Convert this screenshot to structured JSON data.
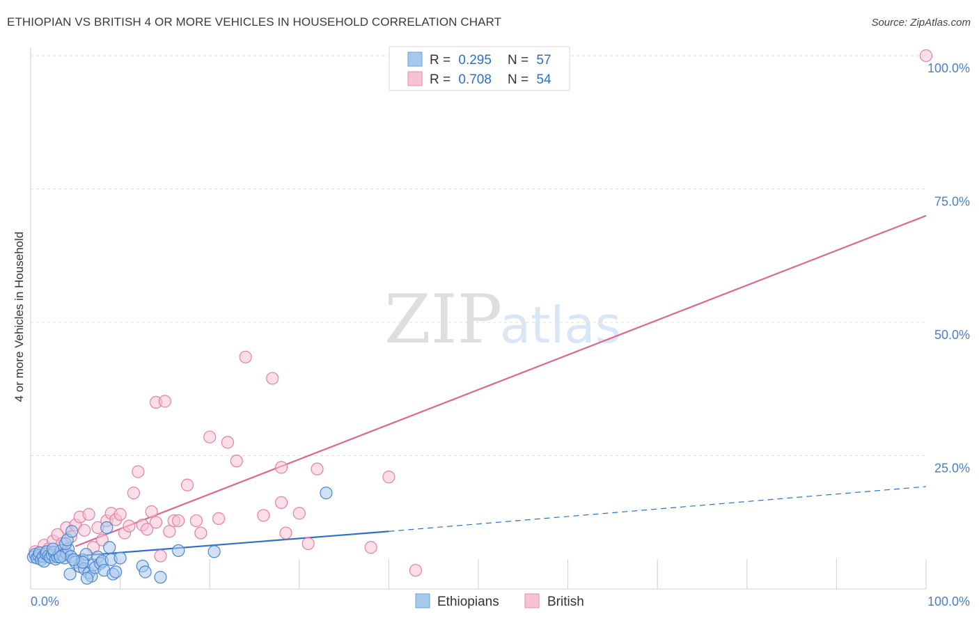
{
  "chart_data": {
    "type": "scatter",
    "title": "ETHIOPIAN VS BRITISH 4 OR MORE VEHICLES IN HOUSEHOLD CORRELATION CHART",
    "source": "Source: ZipAtlas.com",
    "watermark": {
      "zip": "ZIP",
      "atlas": "atlas"
    },
    "xlabel": "",
    "ylabel": "4 or more Vehicles in Household",
    "xlim": [
      0,
      100
    ],
    "ylim": [
      0,
      100
    ],
    "x_tick_labels": {
      "left": "0.0%",
      "right": "100.0%"
    },
    "y_ticks": [
      {
        "value": 100,
        "label": "100.0%"
      },
      {
        "value": 75,
        "label": "75.0%"
      },
      {
        "value": 50,
        "label": "50.0%"
      },
      {
        "value": 25,
        "label": "25.0%"
      }
    ],
    "legend_position": "top-center",
    "series": [
      {
        "name": "Ethiopians",
        "color": "#4a86d0",
        "fill": "#a9c8ee",
        "line_color": "#2a6fcc",
        "R": "0.295",
        "N": "57",
        "r_label": "R =",
        "n_label": "N =",
        "trend": {
          "x0": 0,
          "y0": 5.5,
          "x1": 40,
          "y1": 10.8,
          "dashed_to_x": 100,
          "dashed_to_y": 19.2
        },
        "points": [
          [
            0.3,
            6.0
          ],
          [
            0.5,
            6.5
          ],
          [
            0.7,
            5.8
          ],
          [
            0.9,
            6.3
          ],
          [
            1.0,
            6.8
          ],
          [
            1.2,
            5.5
          ],
          [
            1.4,
            6.1
          ],
          [
            1.5,
            5.2
          ],
          [
            1.7,
            6.6
          ],
          [
            1.8,
            7.0
          ],
          [
            2.0,
            6.2
          ],
          [
            2.2,
            5.9
          ],
          [
            2.4,
            6.4
          ],
          [
            2.6,
            6.9
          ],
          [
            2.8,
            5.6
          ],
          [
            3.0,
            6.0
          ],
          [
            3.2,
            6.5
          ],
          [
            3.4,
            7.2
          ],
          [
            3.6,
            6.3
          ],
          [
            3.8,
            5.8
          ],
          [
            4.0,
            6.7
          ],
          [
            4.2,
            7.5
          ],
          [
            4.5,
            6.1
          ],
          [
            3.9,
            8.5
          ],
          [
            4.1,
            9.2
          ],
          [
            4.6,
            10.8
          ],
          [
            5.0,
            5.0
          ],
          [
            5.5,
            4.2
          ],
          [
            5.8,
            5.5
          ],
          [
            6.0,
            3.8
          ],
          [
            6.2,
            6.5
          ],
          [
            6.5,
            3.0
          ],
          [
            6.8,
            2.4
          ],
          [
            7.0,
            4.5
          ],
          [
            7.2,
            4.0
          ],
          [
            7.5,
            6.0
          ],
          [
            7.8,
            4.8
          ],
          [
            8.0,
            5.2
          ],
          [
            8.2,
            3.5
          ],
          [
            8.5,
            11.5
          ],
          [
            8.8,
            7.8
          ],
          [
            9.0,
            5.5
          ],
          [
            9.2,
            2.8
          ],
          [
            9.5,
            3.2
          ],
          [
            10.0,
            5.8
          ],
          [
            5.8,
            5.0
          ],
          [
            4.4,
            2.8
          ],
          [
            12.5,
            4.3
          ],
          [
            12.8,
            3.2
          ],
          [
            14.5,
            2.2
          ],
          [
            16.5,
            7.2
          ],
          [
            20.5,
            7.0
          ],
          [
            33.0,
            18.0
          ],
          [
            2.5,
            7.5
          ],
          [
            3.3,
            6.0
          ],
          [
            4.8,
            5.5
          ],
          [
            6.3,
            2.0
          ]
        ]
      },
      {
        "name": "British",
        "color": "#e87fa1",
        "fill": "#f7c3d3",
        "line_color": "#e0658f",
        "R": "0.708",
        "N": "54",
        "r_label": "R =",
        "n_label": "N =",
        "trend": {
          "x0": 5.0,
          "y0": 8.0,
          "x1": 100,
          "y1": 70.0
        },
        "points": [
          [
            0.5,
            7.0
          ],
          [
            1.0,
            6.2
          ],
          [
            1.5,
            8.2
          ],
          [
            2.0,
            7.5
          ],
          [
            2.5,
            9.0
          ],
          [
            3.0,
            10.2
          ],
          [
            3.5,
            8.5
          ],
          [
            4.0,
            11.5
          ],
          [
            4.5,
            9.8
          ],
          [
            5.0,
            12.0
          ],
          [
            5.5,
            13.5
          ],
          [
            6.0,
            11.0
          ],
          [
            6.5,
            14.0
          ],
          [
            7.0,
            7.8
          ],
          [
            7.5,
            11.5
          ],
          [
            8.0,
            9.2
          ],
          [
            8.5,
            12.8
          ],
          [
            9.0,
            14.2
          ],
          [
            9.5,
            13.0
          ],
          [
            10.0,
            14.0
          ],
          [
            10.5,
            10.5
          ],
          [
            11.0,
            11.8
          ],
          [
            11.5,
            18.0
          ],
          [
            12.0,
            22.0
          ],
          [
            12.5,
            12.0
          ],
          [
            13.0,
            11.2
          ],
          [
            13.5,
            14.5
          ],
          [
            14.0,
            12.5
          ],
          [
            14.5,
            6.2
          ],
          [
            15.5,
            10.8
          ],
          [
            16.0,
            12.8
          ],
          [
            16.5,
            12.8
          ],
          [
            17.5,
            19.5
          ],
          [
            18.5,
            12.8
          ],
          [
            19.0,
            10.5
          ],
          [
            20.0,
            28.5
          ],
          [
            21.0,
            13.2
          ],
          [
            22.0,
            27.5
          ],
          [
            23.0,
            24.0
          ],
          [
            24.0,
            43.5
          ],
          [
            26.0,
            13.8
          ],
          [
            27.0,
            39.5
          ],
          [
            28.0,
            16.2
          ],
          [
            28.5,
            10.5
          ],
          [
            30.0,
            14.2
          ],
          [
            31.0,
            8.5
          ],
          [
            32.0,
            22.5
          ],
          [
            38.0,
            7.8
          ],
          [
            40.0,
            21.0
          ],
          [
            43.0,
            3.5
          ],
          [
            14.0,
            35.0
          ],
          [
            15.0,
            35.2
          ],
          [
            28.0,
            22.8
          ],
          [
            100,
            100
          ]
        ]
      }
    ]
  }
}
